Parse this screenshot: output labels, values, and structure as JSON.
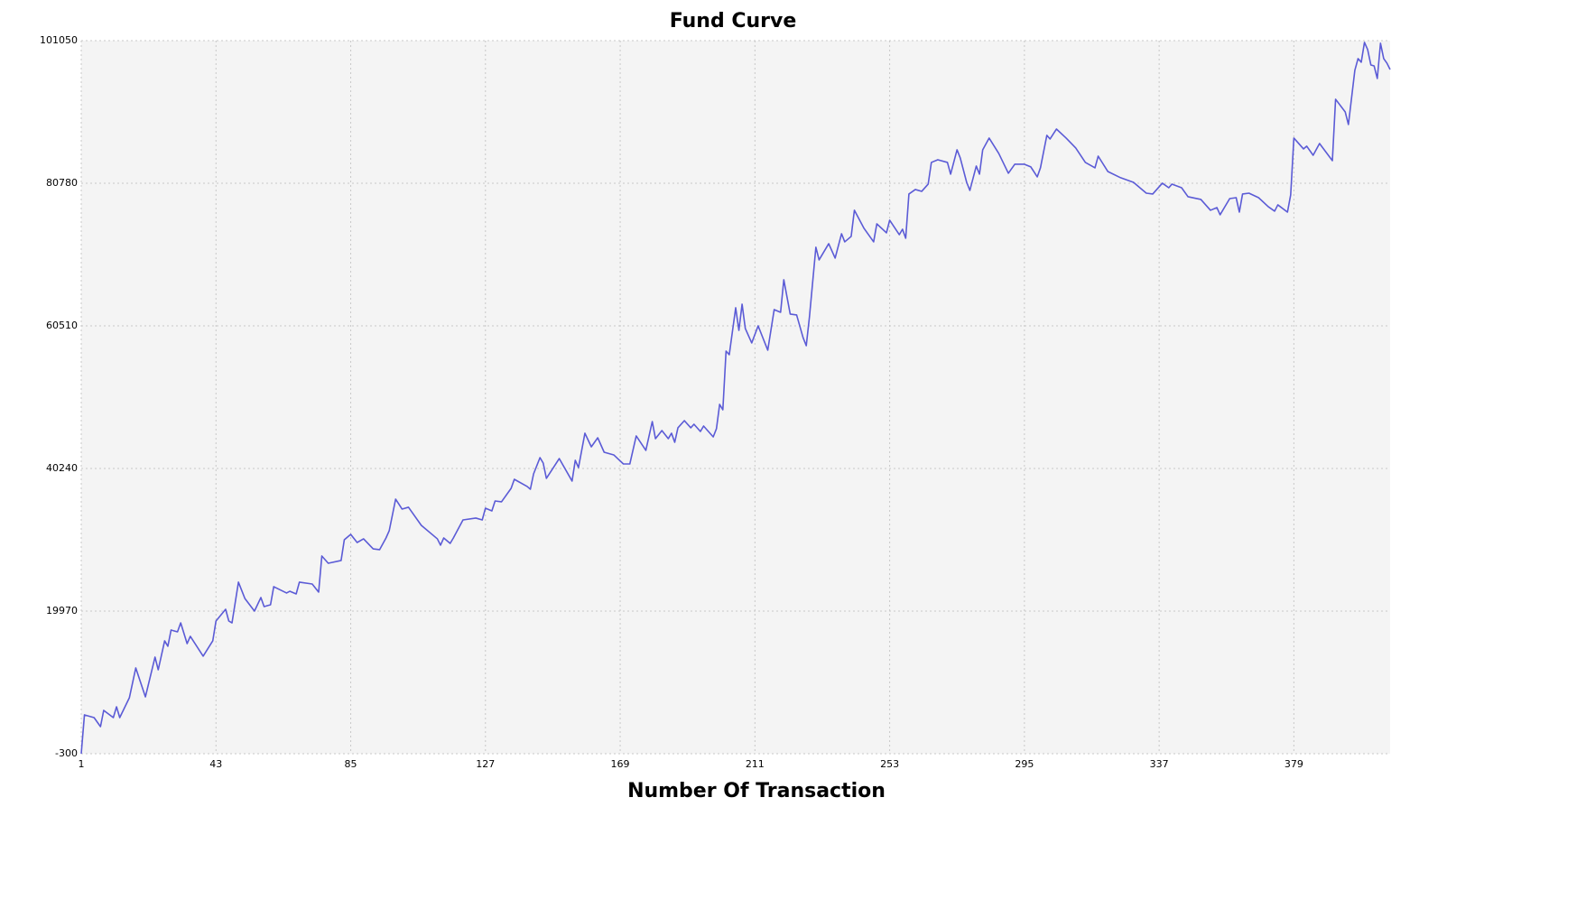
{
  "chart_data": {
    "type": "line",
    "title": "Fund Curve",
    "x_label": "Number Of Transaction",
    "color": "#5b5bd6",
    "grid": true,
    "xlim": [
      1,
      409
    ],
    "xticks": [
      1,
      43,
      85,
      127,
      169,
      211,
      253,
      295,
      337,
      379
    ],
    "ylim": [
      -300,
      101050
    ],
    "yticks": [
      -300,
      19970,
      40240,
      60510,
      80780,
      101050
    ],
    "x": [
      1,
      2,
      5,
      7,
      8,
      11,
      12,
      13,
      16,
      18,
      21,
      24,
      25,
      27,
      28,
      29,
      31,
      32,
      34,
      35,
      39,
      42,
      43,
      46,
      47,
      48,
      50,
      52,
      55,
      57,
      58,
      60,
      61,
      65,
      66,
      68,
      69,
      73,
      75,
      76,
      78,
      82,
      83,
      85,
      87,
      89,
      92,
      94,
      96,
      97,
      99,
      101,
      103,
      107,
      112,
      113,
      114,
      116,
      117,
      120,
      124,
      126,
      127,
      129,
      130,
      132,
      135,
      136,
      140,
      141,
      142,
      144,
      145,
      146,
      150,
      154,
      155,
      156,
      158,
      160,
      162,
      164,
      167,
      170,
      172,
      174,
      177,
      179,
      180,
      182,
      184,
      185,
      186,
      187,
      189,
      191,
      192,
      194,
      195,
      198,
      199,
      200,
      201,
      202,
      203,
      205,
      206,
      207,
      208,
      210,
      212,
      215,
      217,
      219,
      220,
      222,
      224,
      226,
      227,
      228,
      230,
      231,
      234,
      236,
      238,
      239,
      241,
      242,
      245,
      248,
      249,
      252,
      253,
      256,
      257,
      258,
      259,
      261,
      263,
      265,
      266,
      268,
      271,
      272,
      274,
      275,
      277,
      278,
      280,
      281,
      282,
      284,
      287,
      290,
      292,
      295,
      297,
      299,
      300,
      302,
      303,
      305,
      308,
      311,
      314,
      317,
      318,
      321,
      325,
      329,
      333,
      335,
      338,
      340,
      341,
      344,
      346,
      350,
      353,
      355,
      356,
      359,
      361,
      362,
      363,
      365,
      368,
      371,
      373,
      374,
      377,
      378,
      379,
      382,
      383,
      385,
      387,
      391,
      392,
      395,
      396,
      398,
      399,
      400,
      401,
      402,
      403,
      404,
      405,
      406,
      407,
      408,
      409
    ],
    "values": [
      -300,
      5220,
      4830,
      3550,
      5860,
      4830,
      6370,
      4830,
      7650,
      11890,
      7780,
      13430,
      11630,
      15740,
      14970,
      17280,
      17020,
      18300,
      15350,
      16380,
      13560,
      15740,
      18560,
      20230,
      18560,
      18300,
      24080,
      21770,
      19970,
      21900,
      20610,
      20870,
      23440,
      22540,
      22790,
      22410,
      24080,
      23820,
      22670,
      27800,
      26770,
      27160,
      30110,
      30880,
      29720,
      30240,
      28820,
      28700,
      30360,
      31390,
      35880,
      34470,
      34730,
      32160,
      30240,
      29340,
      30360,
      29590,
      30360,
      32930,
      33190,
      32930,
      34600,
      34210,
      35620,
      35500,
      37420,
      38700,
      37680,
      37290,
      39470,
      41780,
      41010,
      38830,
      41650,
      38450,
      41400,
      40370,
      45250,
      43320,
      44600,
      42550,
      42170,
      40880,
      40880,
      44860,
      42810,
      46910,
      44480,
      45630,
      44480,
      45250,
      43960,
      46020,
      47040,
      46020,
      46530,
      45500,
      46270,
      44730,
      45890,
      49350,
      48580,
      56920,
      56410,
      63080,
      59870,
      63590,
      60130,
      58080,
      60510,
      57050,
      62820,
      62440,
      67060,
      62180,
      62060,
      58850,
      57690,
      61800,
      71680,
      69880,
      72190,
      70140,
      73600,
      72450,
      73220,
      76940,
      74370,
      72450,
      75010,
      73730,
      75530,
      73470,
      74240,
      72960,
      79250,
      79890,
      79630,
      80660,
      83740,
      84120,
      83740,
      82070,
      85530,
      84380,
      80910,
      79760,
      83220,
      82070,
      85530,
      87200,
      85020,
      82200,
      83480,
      83480,
      83100,
      81680,
      82970,
      87590,
      87070,
      88480,
      87200,
      85790,
      83740,
      82970,
      84630,
      82450,
      81560,
      80910,
      79370,
      79250,
      80790,
      80140,
      80660,
      80140,
      78860,
      78480,
      76940,
      77320,
      76300,
      78600,
      78730,
      76680,
      79250,
      79370,
      78730,
      77450,
      76810,
      77710,
      76680,
      79120,
      87200,
      85660,
      86050,
      84760,
      86430,
      83990,
      92720,
      90920,
      89130,
      96820,
      98490,
      97980,
      100800,
      99770,
      97590,
      97460,
      95670,
      100670,
      98490,
      97850,
      96950
    ]
  }
}
